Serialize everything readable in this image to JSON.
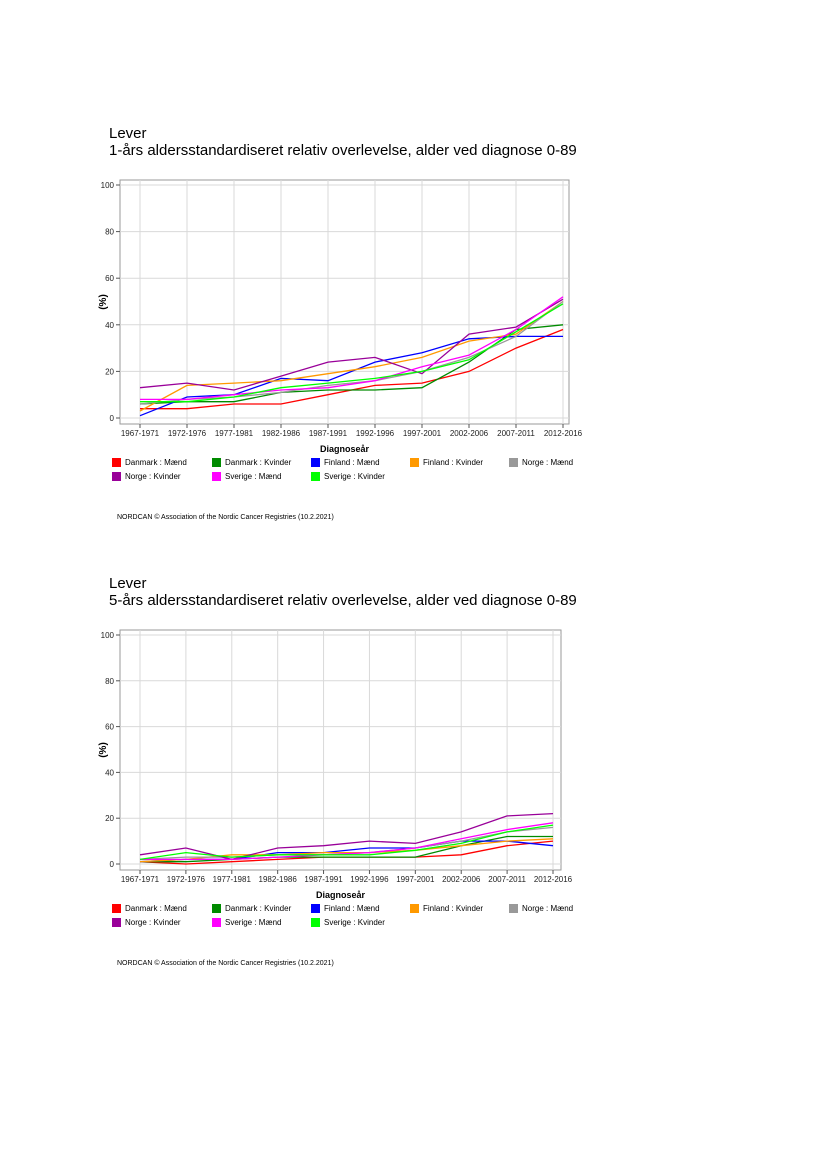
{
  "charts": [
    {
      "heading": "Lever",
      "subtitle": "1-års aldersstandardiseret relativ overlevelse, alder ved diagnose 0-89",
      "footer": "NORDCAN © Association of the Nordic Cancer Registries (10.2.2021)"
    },
    {
      "heading": "Lever",
      "subtitle": "5-års aldersstandardiseret relativ overlevelse, alder ved diagnose 0-89",
      "footer": "NORDCAN © Association of the Nordic Cancer Registries (10.2.2021)"
    }
  ],
  "chart_data": [
    {
      "type": "line",
      "title": "1-års aldersstandardiseret relativ overlevelse, alder ved diagnose 0-89",
      "xlabel": "Diagnoseår",
      "ylabel": "(%)",
      "ylim": [
        0,
        100
      ],
      "yticks": [
        "0",
        "20",
        "40",
        "60",
        "80",
        "100"
      ],
      "grid": true,
      "legend_position": "bottom",
      "categories": [
        "1967-1971",
        "1972-1976",
        "1977-1981",
        "1982-1986",
        "1987-1991",
        "1992-1996",
        "1997-2001",
        "2002-2006",
        "2007-2011",
        "2012-2016"
      ],
      "series": [
        {
          "name": "Danmark : Mænd",
          "color": "#ff0000",
          "values": [
            4,
            4,
            6,
            6,
            10,
            14,
            15,
            20,
            30,
            38
          ]
        },
        {
          "name": "Danmark : Kvinder",
          "color": "#008b00",
          "values": [
            6,
            7,
            7,
            11,
            12,
            12,
            13,
            24,
            38,
            40
          ]
        },
        {
          "name": "Finland : Mænd",
          "color": "#0000ff",
          "values": [
            1,
            9,
            10,
            17,
            16,
            24,
            28,
            34,
            35,
            35
          ]
        },
        {
          "name": "Finland : Kvinder",
          "color": "#ff9900",
          "values": [
            3,
            14,
            15,
            16,
            19,
            22,
            26,
            33,
            36,
            50
          ]
        },
        {
          "name": "Norge : Mænd",
          "color": "#999999",
          "values": [
            6,
            8,
            9,
            11,
            14,
            16,
            20,
            26,
            35,
            50
          ]
        },
        {
          "name": "Norge : Kvinder",
          "color": "#990099",
          "values": [
            13,
            15,
            12,
            18,
            24,
            26,
            19,
            36,
            39,
            51
          ]
        },
        {
          "name": "Sverige : Mænd",
          "color": "#ff00ff",
          "values": [
            8,
            8,
            10,
            12,
            13,
            16,
            22,
            27,
            38,
            52
          ]
        },
        {
          "name": "Sverige : Kvinder",
          "color": "#00ff00",
          "values": [
            7,
            7,
            9,
            13,
            15,
            17,
            20,
            25,
            37,
            49
          ]
        }
      ]
    },
    {
      "type": "line",
      "title": "5-års aldersstandardiseret relativ overlevelse, alder ved diagnose 0-89",
      "xlabel": "Diagnoseår",
      "ylabel": "(%)",
      "ylim": [
        0,
        100
      ],
      "yticks": [
        "0",
        "20",
        "40",
        "60",
        "80",
        "100"
      ],
      "grid": true,
      "legend_position": "bottom",
      "categories": [
        "1967-1971",
        "1972-1976",
        "1977-1981",
        "1982-1986",
        "1987-1991",
        "1992-1996",
        "1997-2001",
        "2002-2006",
        "2007-2011",
        "2012-2016"
      ],
      "series": [
        {
          "name": "Danmark : Mænd",
          "color": "#ff0000",
          "values": [
            1,
            0,
            1,
            2,
            3,
            3,
            3,
            4,
            8,
            10
          ]
        },
        {
          "name": "Danmark : Kvinder",
          "color": "#008b00",
          "values": [
            1,
            1,
            2,
            3,
            3,
            3,
            3,
            8,
            12,
            12
          ]
        },
        {
          "name": "Finland : Mænd",
          "color": "#0000ff",
          "values": [
            1,
            2,
            2,
            5,
            5,
            7,
            7,
            10,
            10,
            8
          ]
        },
        {
          "name": "Finland : Kvinder",
          "color": "#ff9900",
          "values": [
            1,
            2,
            4,
            4,
            5,
            5,
            6,
            8,
            10,
            11
          ]
        },
        {
          "name": "Norge : Mænd",
          "color": "#999999",
          "values": [
            2,
            3,
            3,
            4,
            4,
            5,
            7,
            10,
            14,
            16
          ]
        },
        {
          "name": "Norge : Kvinder",
          "color": "#990099",
          "values": [
            4,
            7,
            2,
            7,
            8,
            10,
            9,
            14,
            21,
            22
          ]
        },
        {
          "name": "Sverige : Mænd",
          "color": "#ff00ff",
          "values": [
            2,
            2,
            2,
            3,
            4,
            5,
            7,
            11,
            15,
            18
          ]
        },
        {
          "name": "Sverige : Kvinder",
          "color": "#00ff00",
          "values": [
            2,
            5,
            3,
            4,
            4,
            4,
            6,
            9,
            14,
            17
          ]
        }
      ]
    }
  ]
}
